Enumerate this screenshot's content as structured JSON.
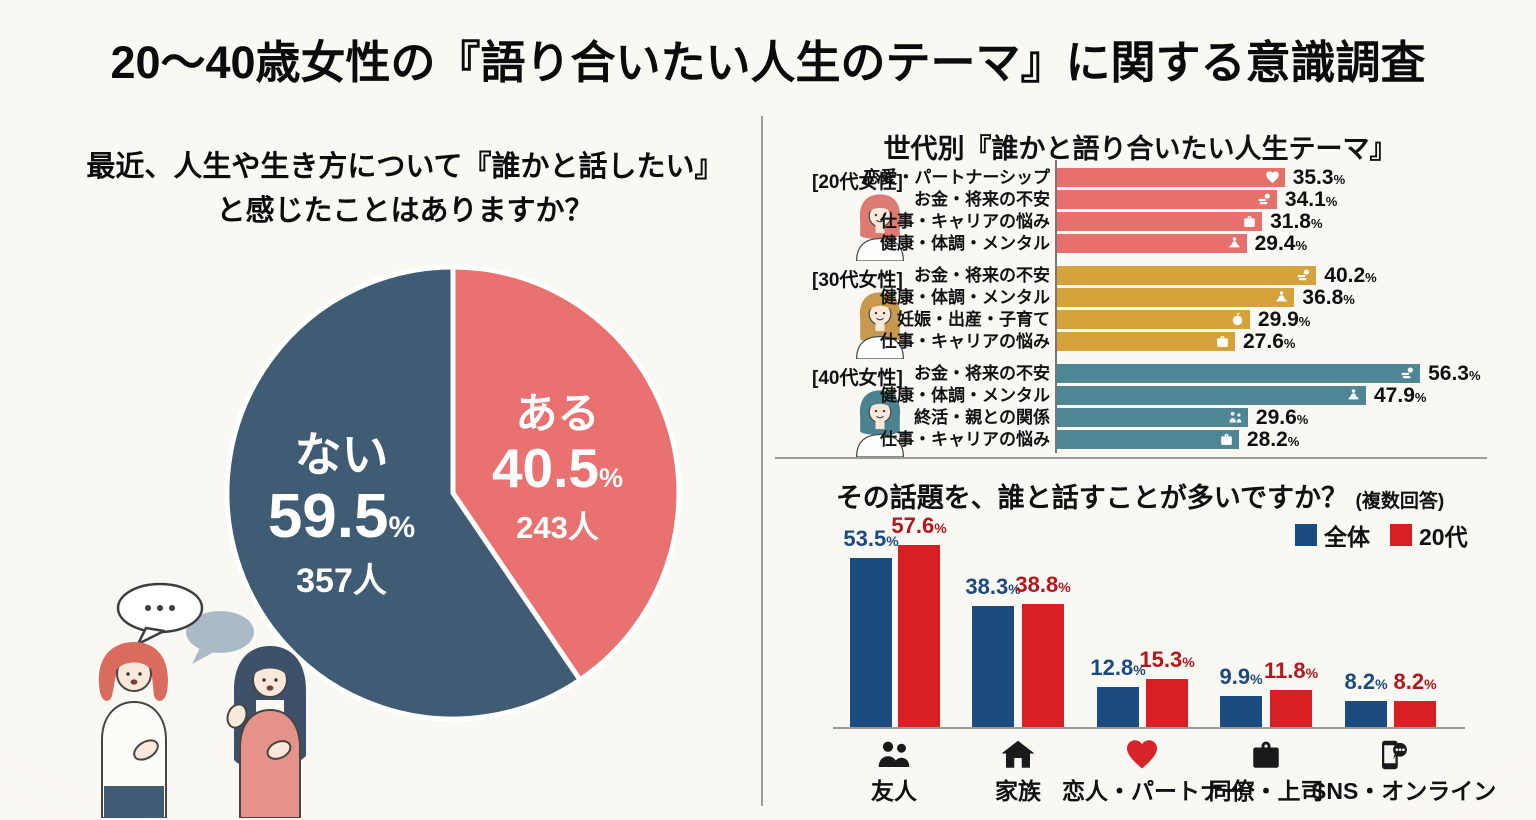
{
  "page": {
    "title": "20〜40歳女性の『語り合いたい人生のテーマ』に関する意識調査",
    "background_color": "#F8F6F0"
  },
  "chart_data": [
    {
      "type": "pie",
      "title_line1": "最近、人生や生き方について『誰かと話したい』",
      "title_line2": "と感じたことはありますか？",
      "unit": "%",
      "start_angle": "12-oclock",
      "direction": "clockwise",
      "slices": [
        {
          "label": "ある",
          "value": 40.5,
          "count_label": "243人",
          "color": "#E97170"
        },
        {
          "label": "ない",
          "value": 59.5,
          "count_label": "357人",
          "color": "#3F5C74"
        }
      ]
    },
    {
      "type": "bar",
      "orientation": "horizontal",
      "title": "世代別『誰かと語り合いたい人生テーマ』",
      "unit": "%",
      "xlim": [
        0,
        60
      ],
      "groups": [
        {
          "label": "[20代女性]",
          "color": "#E8706C",
          "hair_color": "#DD7B72",
          "rows": [
            {
              "label": "恋愛・パートナーシップ",
              "value": 35.3,
              "icon": "heart"
            },
            {
              "label": "お金・将来の不安",
              "value": 34.1,
              "icon": "money"
            },
            {
              "label": "仕事・キャリアの悩み",
              "value": 31.8,
              "icon": "briefcase"
            },
            {
              "label": "健康・体調・メンタル",
              "value": 29.4,
              "icon": "meditation"
            }
          ]
        },
        {
          "label": "[30代女性]",
          "color": "#D5A23C",
          "hair_color": "#C8994F",
          "rows": [
            {
              "label": "お金・将来の不安",
              "value": 40.2,
              "icon": "money"
            },
            {
              "label": "健康・体調・メンタル",
              "value": 36.8,
              "icon": "meditation"
            },
            {
              "label": "妊娠・出産・子育て",
              "value": 29.9,
              "icon": "baby"
            },
            {
              "label": "仕事・キャリアの悩み",
              "value": 27.6,
              "icon": "briefcase"
            }
          ]
        },
        {
          "label": "[40代女性]",
          "color": "#4E8695",
          "hair_color": "#4B8290",
          "rows": [
            {
              "label": "お金・将来の不安",
              "value": 56.3,
              "icon": "money"
            },
            {
              "label": "健康・体調・メンタル",
              "value": 47.9,
              "icon": "meditation"
            },
            {
              "label": "終活・親との関係",
              "value": 29.6,
              "icon": "elders"
            },
            {
              "label": "仕事・キャリアの悩み",
              "value": 28.2,
              "icon": "briefcase"
            }
          ]
        }
      ]
    },
    {
      "type": "bar",
      "orientation": "vertical",
      "title": "その話題を、誰と話すことが多いですか？",
      "note": "(複数回答)",
      "unit": "%",
      "ylim": [
        0,
        60
      ],
      "legend_position": "top-right",
      "categories": [
        {
          "label": "友人",
          "icon": "friends",
          "icon_color": "#1a1a1a"
        },
        {
          "label": "家族",
          "icon": "house",
          "icon_color": "#1a1a1a"
        },
        {
          "label": "恋人・パートナー",
          "icon": "heart",
          "icon_color": "#D9232A"
        },
        {
          "label": "同僚・上司",
          "icon": "briefcase",
          "icon_color": "#1a1a1a"
        },
        {
          "label": "SNS・オンライン",
          "icon": "phone",
          "icon_color": "#1a1a1a"
        }
      ],
      "series": [
        {
          "name": "全体",
          "color": "#1C4B80",
          "label_color": "#1C4A7E",
          "values": [
            53.5,
            38.3,
            12.8,
            9.9,
            8.2
          ]
        },
        {
          "name": "20代",
          "color": "#D91F24",
          "label_color": "#B5161D",
          "values": [
            57.6,
            38.8,
            15.3,
            11.8,
            8.2
          ]
        }
      ]
    }
  ]
}
